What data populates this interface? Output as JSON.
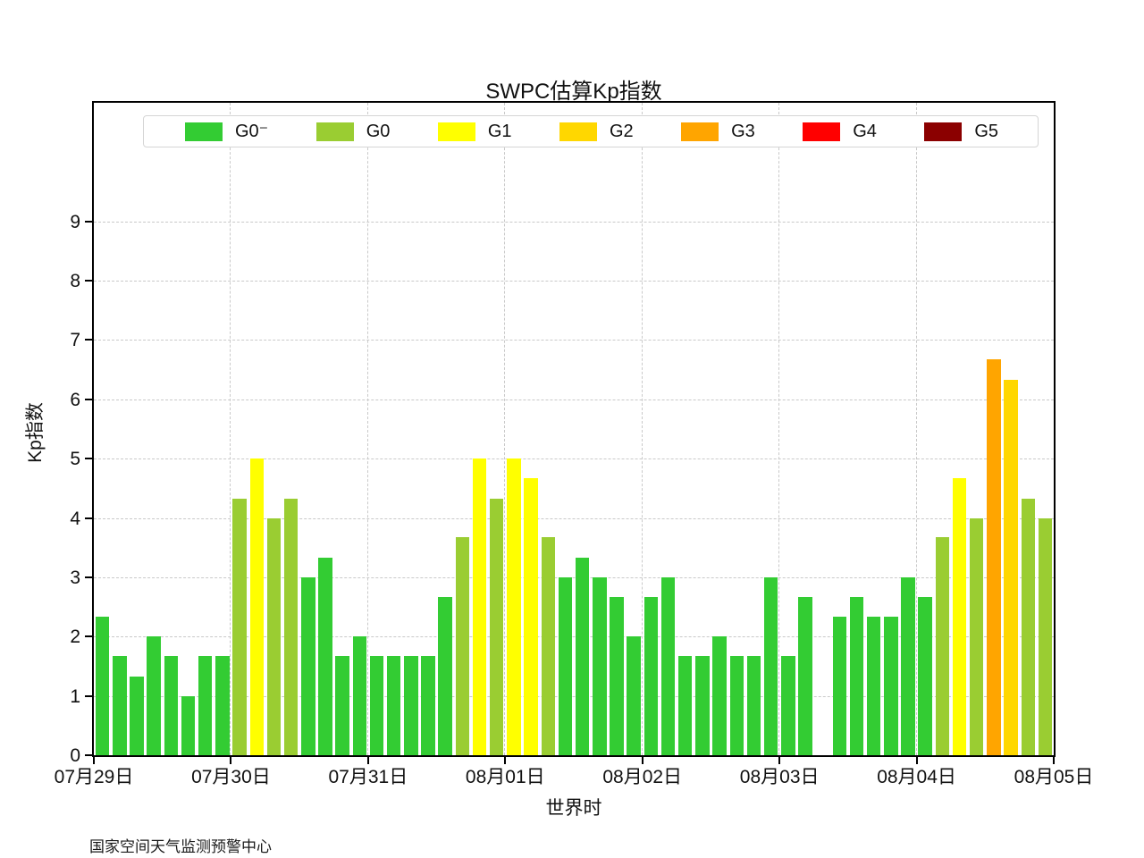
{
  "title": "SWPC估算Kp指数",
  "footer": "国家空间天气监测预警中心",
  "chart_data": {
    "type": "bar",
    "title": "SWPC估算Kp指数",
    "xlabel": "世界时",
    "ylabel": "Kp指数",
    "ylim": [
      0,
      11
    ],
    "yticks": [
      0,
      1,
      2,
      3,
      4,
      5,
      6,
      7,
      8,
      9
    ],
    "grid": true,
    "legend_position": "top",
    "x_tick_labels": [
      "07月29日",
      "07月30日",
      "07月31日",
      "08月01日",
      "08月02日",
      "08月03日",
      "08月04日",
      "08月05日"
    ],
    "slots_per_day": 8,
    "series": [
      {
        "day": "07月29日",
        "values": [
          2.33,
          1.67,
          1.33,
          2.0,
          1.67,
          1.0,
          1.67,
          1.67
        ]
      },
      {
        "day": "07月30日",
        "values": [
          4.33,
          5.0,
          4.0,
          4.33,
          3.0,
          3.33,
          1.67,
          2.0
        ]
      },
      {
        "day": "07月31日",
        "values": [
          1.67,
          1.67,
          1.67,
          1.67,
          2.67,
          3.67,
          5.0,
          4.33
        ]
      },
      {
        "day": "08月01日",
        "values": [
          5.0,
          4.67,
          3.67,
          3.0,
          3.33,
          3.0,
          2.67,
          2.0
        ]
      },
      {
        "day": "08月02日",
        "values": [
          2.67,
          3.0,
          1.67,
          1.67,
          2.0,
          1.67,
          1.67,
          3.0
        ]
      },
      {
        "day": "08月03日",
        "values": [
          1.67,
          2.67,
          null,
          2.33,
          2.67,
          2.33,
          2.33,
          3.0
        ]
      },
      {
        "day": "08月04日",
        "values": [
          2.67,
          3.67,
          4.67,
          4.0,
          6.67,
          6.33,
          4.33,
          4.0
        ]
      }
    ],
    "legend": [
      {
        "label": "G0⁻",
        "color": "#33CC33"
      },
      {
        "label": "G0",
        "color": "#9ACD32"
      },
      {
        "label": "G1",
        "color": "#FFFF00"
      },
      {
        "label": "G2",
        "color": "#FFD700"
      },
      {
        "label": "G3",
        "color": "#FFA500"
      },
      {
        "label": "G4",
        "color": "#FF0000"
      },
      {
        "label": "G5",
        "color": "#8B0000"
      }
    ]
  }
}
